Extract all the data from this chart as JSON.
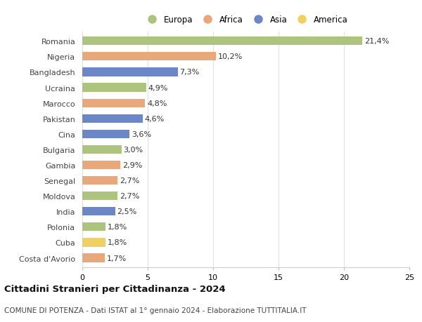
{
  "countries": [
    "Romania",
    "Nigeria",
    "Bangladesh",
    "Ucraina",
    "Marocco",
    "Pakistan",
    "Cina",
    "Bulgaria",
    "Gambia",
    "Senegal",
    "Moldova",
    "India",
    "Polonia",
    "Cuba",
    "Costa d'Avorio"
  ],
  "values": [
    21.4,
    10.2,
    7.3,
    4.9,
    4.8,
    4.6,
    3.6,
    3.0,
    2.9,
    2.7,
    2.7,
    2.5,
    1.8,
    1.8,
    1.7
  ],
  "continents": [
    "Europa",
    "Africa",
    "Asia",
    "Europa",
    "Africa",
    "Asia",
    "Asia",
    "Europa",
    "Africa",
    "Africa",
    "Europa",
    "Asia",
    "Europa",
    "America",
    "Africa"
  ],
  "colors": {
    "Europa": "#adc47e",
    "Africa": "#e8a87c",
    "Asia": "#6b87c7",
    "America": "#f0d060"
  },
  "legend_order": [
    "Europa",
    "Africa",
    "Asia",
    "America"
  ],
  "title1": "Cittadini Stranieri per Cittadinanza - 2024",
  "title2": "COMUNE DI POTENZA - Dati ISTAT al 1° gennaio 2024 - Elaborazione TUTTITALIA.IT",
  "xlim": [
    0,
    25
  ],
  "xticks": [
    0,
    5,
    10,
    15,
    20,
    25
  ],
  "background_color": "#ffffff",
  "grid_color": "#e0e0e0",
  "bar_height": 0.55,
  "label_fontsize": 8,
  "tick_fontsize": 8,
  "legend_fontsize": 8.5,
  "title1_fontsize": 9.5,
  "title2_fontsize": 7.5
}
